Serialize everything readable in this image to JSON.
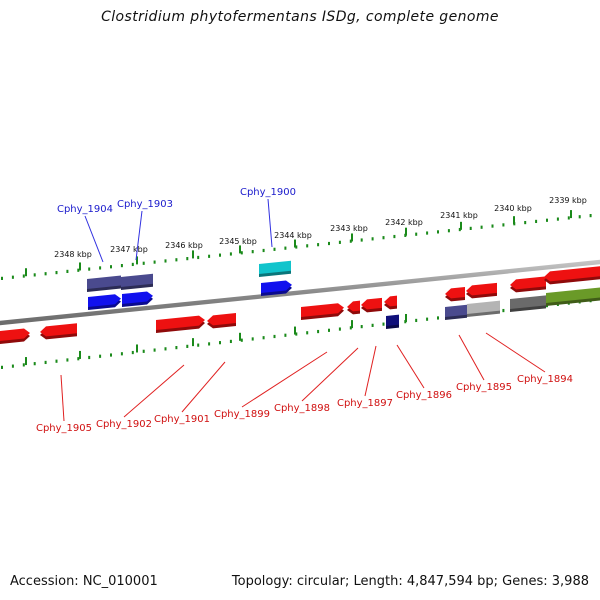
{
  "header": {
    "title": "Clostridium phytofermentans ISDg, complete genome"
  },
  "footer": {
    "accession": "Accession: NC_010001",
    "stats": "Topology: circular; Length: 4,847,594 bp; Genes: 3,988"
  },
  "scale": {
    "ticks": [
      "2348 kbp",
      "2347 kbp",
      "2346 kbp",
      "2345 kbp",
      "2344 kbp",
      "2343 kbp",
      "2342 kbp",
      "2341 kbp",
      "2340 kbp",
      "2339 kbp"
    ]
  },
  "genes_top": [
    "Cphy_1904",
    "Cphy_1903",
    "Cphy_1900"
  ],
  "genes_bottom": [
    "Cphy_1905",
    "Cphy_1902",
    "Cphy_1901",
    "Cphy_1899",
    "Cphy_1898",
    "Cphy_1897",
    "Cphy_1896",
    "Cphy_1895",
    "Cphy_1894"
  ],
  "colors": {
    "backbone": "#8a8a8a",
    "tick": "#1a8a1a",
    "gene_red": "#ee1111",
    "gene_blue": "#1111ee",
    "gene_slate": "#4a4a8e",
    "gene_cyan": "#11c4cc",
    "gene_navy": "#10107a",
    "gene_grey": "#b4b4b4",
    "gene_olive": "#6a9a28",
    "label_blue": "#1a1acc",
    "label_red": "#d01010"
  }
}
